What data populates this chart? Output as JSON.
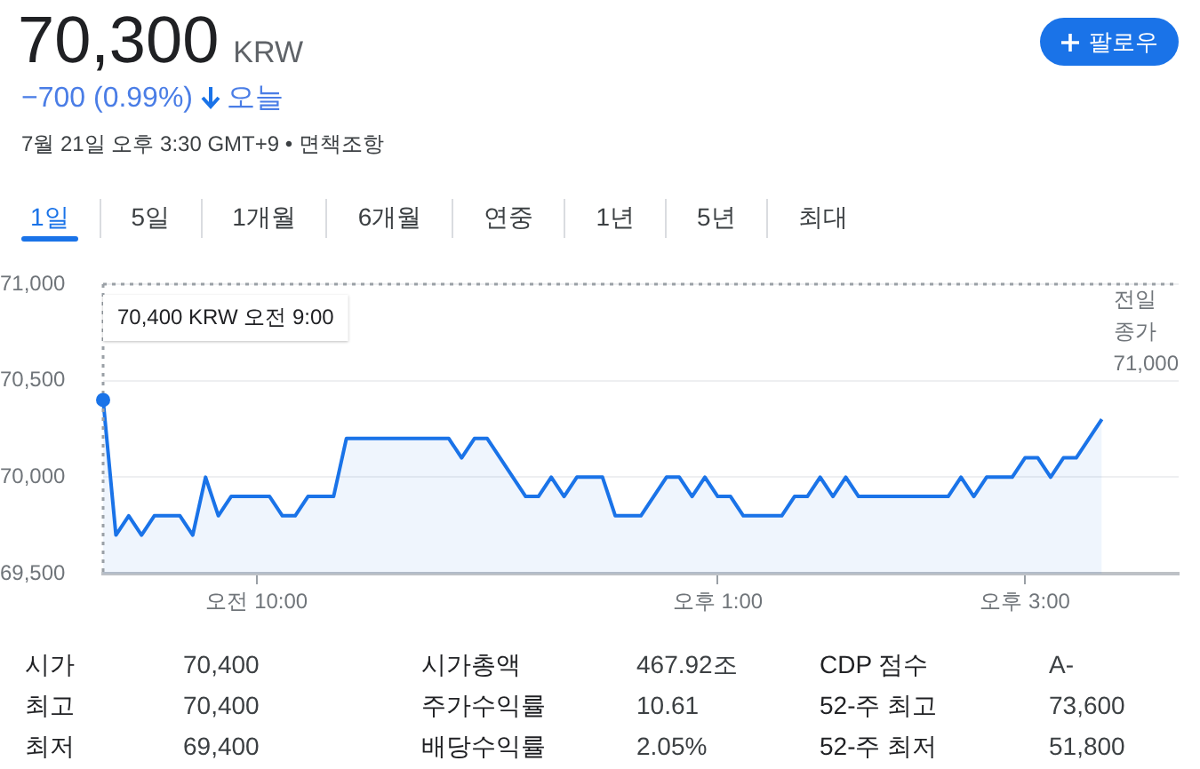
{
  "chart_data": [
    {
      "type": "other",
      "title": "70,300",
      "subtitle": "KRW",
      "annotations": [
        "−700 (0.99%)",
        "오늘",
        "7월 21일 오후 3:30 GMT+9 • 면책조항",
        "팔로우",
        "1일",
        "5일",
        "1개월",
        "6개월",
        "연중",
        "1년",
        "5년",
        "최대"
      ]
    },
    {
      "type": "area",
      "categories": [
        null,
        null,
        null,
        null,
        null,
        null,
        null,
        null,
        null,
        null,
        null,
        null,
        "오전 10:00",
        null,
        null,
        null,
        null,
        null,
        null,
        null,
        null,
        null,
        null,
        null,
        null,
        null,
        null,
        null,
        null,
        null,
        null,
        null,
        null,
        null,
        null,
        null,
        null,
        null,
        null,
        null,
        null,
        null,
        null,
        null,
        null,
        null,
        null,
        null,
        "오후 1:00",
        null,
        null,
        null,
        null,
        null,
        null,
        null,
        null,
        null,
        null,
        null,
        null,
        null,
        null,
        null,
        null,
        null,
        null,
        null,
        null,
        null,
        null,
        null,
        "오후 3:00",
        null,
        null,
        null,
        null,
        null,
        null,
        null,
        null,
        null,
        null,
        null,
        null
      ],
      "values": [
        70400,
        69700,
        69800,
        69700,
        69800,
        69800,
        69800,
        69700,
        70000,
        69800,
        69900,
        69900,
        69900,
        69900,
        69800,
        69800,
        69900,
        69900,
        69900,
        70200,
        70200,
        70200,
        70200,
        70200,
        70200,
        70200,
        70200,
        70200,
        70100,
        70200,
        70200,
        70100,
        70000,
        69900,
        69900,
        70000,
        69900,
        70000,
        70000,
        70000,
        69800,
        69800,
        69800,
        69900,
        70000,
        70000,
        69900,
        70000,
        69900,
        69900,
        69800,
        69800,
        69800,
        69800,
        69900,
        69900,
        70000,
        69900,
        70000,
        69900,
        69900,
        69900,
        69900,
        69900,
        69900,
        69900,
        69900,
        70000,
        69900,
        70000,
        70000,
        70000,
        70100,
        70100,
        70000,
        70100,
        70100,
        70200,
        70300,
        null,
        null,
        null,
        null,
        null,
        null
      ],
      "color": "#1a73e8",
      "ylim": [
        69500,
        71000
      ],
      "yticks": [
        {
          "value": 69500,
          "label": "69,500"
        },
        {
          "value": 70000,
          "label": "70,000"
        },
        {
          "value": 70500,
          "label": "70,500"
        },
        {
          "value": 71000,
          "label": "71,000"
        }
      ],
      "grid": "y",
      "ref_lines": [
        {
          "axis": "y",
          "value": 71000,
          "label": "전일 종가 71,000",
          "line_style": "dotted"
        }
      ],
      "annotations": [
        "70,400 KRW 오전 9:00"
      ]
    },
    {
      "type": "other",
      "annotations": [
        "시가",
        "70,400",
        "시가총액",
        "467.92조",
        "CDP 점수",
        "A-",
        "최고",
        "70,400",
        "주가수익률",
        "10.61",
        "52-주 최고",
        "73,600",
        "최저",
        "69,400",
        "배당수익률",
        "2.05%",
        "52-주 최저",
        "51,800"
      ]
    }
  ]
}
